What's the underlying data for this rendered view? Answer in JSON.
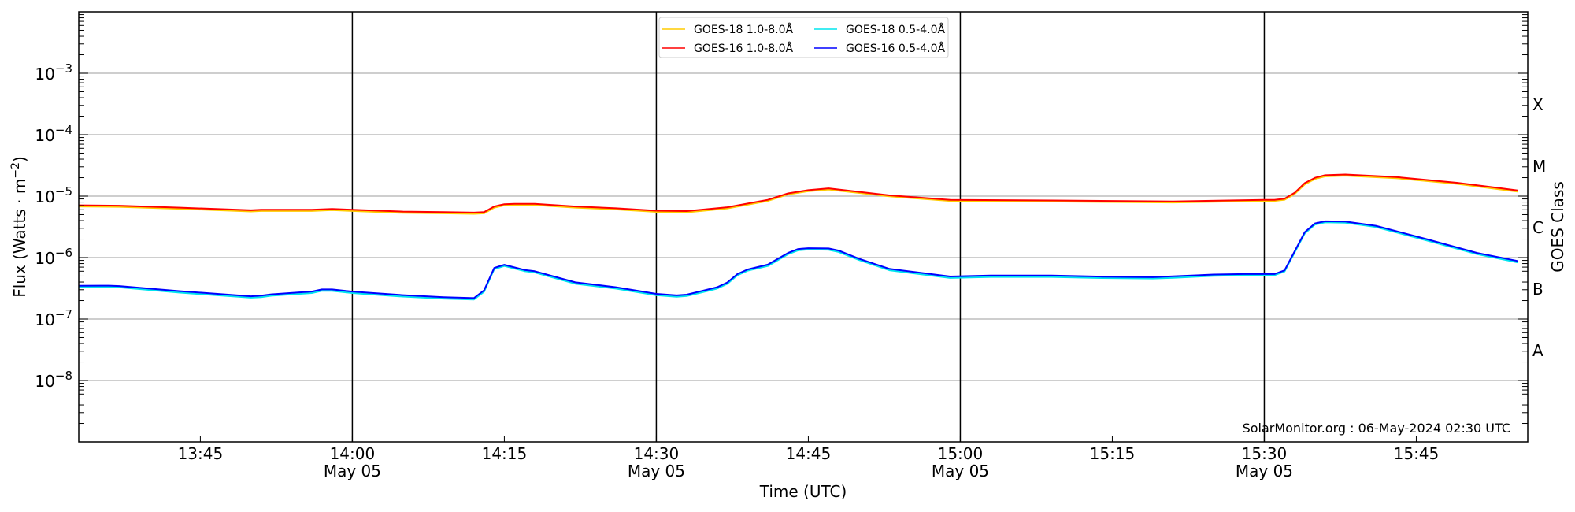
{
  "chart_data": {
    "type": "line",
    "title": "",
    "xlabel": "Time (UTC)",
    "ylabel": "Flux (Watts · m",
    "ylabel_exp": "−2",
    "ylabel_close": ")",
    "right_ylabel": "GOES Class",
    "yscale": "log",
    "ylim": [
      1e-09,
      0.01
    ],
    "xlim": [
      "13:33",
      "15:56"
    ],
    "date": "May 05",
    "xticks": [
      {
        "time": "13:45",
        "label": "13:45",
        "sub": ""
      },
      {
        "time": "14:00",
        "label": "14:00",
        "sub": "May 05"
      },
      {
        "time": "14:15",
        "label": "14:15",
        "sub": ""
      },
      {
        "time": "14:30",
        "label": "14:30",
        "sub": "May 05"
      },
      {
        "time": "14:45",
        "label": "14:45",
        "sub": ""
      },
      {
        "time": "15:00",
        "label": "15:00",
        "sub": "May 05"
      },
      {
        "time": "15:15",
        "label": "15:15",
        "sub": ""
      },
      {
        "time": "15:30",
        "label": "15:30",
        "sub": "May 05"
      },
      {
        "time": "15:45",
        "label": "15:45",
        "sub": ""
      }
    ],
    "vlines": [
      "14:00",
      "14:30",
      "15:00",
      "15:30"
    ],
    "yticks": [
      {
        "exp": -3,
        "base": "10",
        "exp_label": "−3"
      },
      {
        "exp": -4,
        "base": "10",
        "exp_label": "−4"
      },
      {
        "exp": -5,
        "base": "10",
        "exp_label": "−5"
      },
      {
        "exp": -6,
        "base": "10",
        "exp_label": "−6"
      },
      {
        "exp": -7,
        "base": "10",
        "exp_label": "−7"
      },
      {
        "exp": -8,
        "base": "10",
        "exp_label": "−8"
      }
    ],
    "goes_classes": [
      {
        "label": "X",
        "log_center": -3.5
      },
      {
        "label": "M",
        "log_center": -4.5
      },
      {
        "label": "C",
        "log_center": -5.5
      },
      {
        "label": "B",
        "log_center": -6.5
      },
      {
        "label": "A",
        "log_center": -7.5
      }
    ],
    "grid": true,
    "legend_position": "top-center",
    "legend": [
      {
        "name": "GOES-18 1.0-8.0Å",
        "color": "#ffcc00"
      },
      {
        "name": "GOES-18 0.5-4.0Å",
        "color": "#00e5ee"
      },
      {
        "name": "GOES-16 1.0-8.0Å",
        "color": "#ff0000"
      },
      {
        "name": "GOES-16 0.5-4.0Å",
        "color": "#0000ff"
      }
    ],
    "series": [
      {
        "name": "GOES-18 1.0-8.0Å",
        "color": "#ffcc00",
        "x": [
          "13:33",
          "13:37",
          "13:43",
          "13:50",
          "13:51",
          "13:56",
          "13:58",
          "14:00",
          "14:05",
          "14:09",
          "14:12",
          "14:13",
          "14:14",
          "14:15",
          "14:16",
          "14:18",
          "14:22",
          "14:26",
          "14:30",
          "14:33",
          "14:37",
          "14:41",
          "14:43",
          "14:45",
          "14:47",
          "14:53",
          "14:59",
          "15:09",
          "15:21",
          "15:30",
          "15:31",
          "15:32",
          "15:33",
          "15:34",
          "15:35",
          "15:36",
          "15:38",
          "15:43",
          "15:49",
          "15:55"
        ],
        "values": [
          7e-06,
          6.9e-06,
          6.4e-06,
          5.8e-06,
          5.9e-06,
          5.9e-06,
          6.1e-06,
          5.9e-06,
          5.5e-06,
          5.4e-06,
          5.3e-06,
          5.4e-06,
          6.7e-06,
          7.3e-06,
          7.4e-06,
          7.4e-06,
          6.7e-06,
          6.25e-06,
          5.7e-06,
          5.6e-06,
          6.5e-06,
          8.6e-06,
          1.1e-05,
          1.24e-05,
          1.32e-05,
          1.02e-05,
          8.6e-06,
          8.4e-06,
          8.1e-06,
          8.6e-06,
          8.6e-06,
          9e-06,
          1.12e-05,
          1.6e-05,
          1.96e-05,
          2.16e-05,
          2.22e-05,
          2.02e-05,
          1.63e-05,
          1.22e-05
        ]
      },
      {
        "name": "GOES-18 0.5-4.0Å",
        "color": "#00e5ee",
        "x": [
          "13:33",
          "13:36",
          "13:37",
          "13:43",
          "13:50",
          "13:51",
          "13:52",
          "13:56",
          "13:57",
          "13:58",
          "14:00",
          "14:05",
          "14:09",
          "14:12",
          "14:13",
          "14:14",
          "14:15",
          "14:17",
          "14:18",
          "14:22",
          "14:26",
          "14:30",
          "14:32",
          "14:33",
          "14:36",
          "14:37",
          "14:38",
          "14:39",
          "14:41",
          "14:43",
          "14:44",
          "14:45",
          "14:47",
          "14:48",
          "14:50",
          "14:53",
          "14:59",
          "15:03",
          "15:09",
          "15:14",
          "15:19",
          "15:21",
          "15:25",
          "15:28",
          "15:31",
          "15:32",
          "15:34",
          "15:35",
          "15:36",
          "15:38",
          "15:41",
          "15:46",
          "15:51",
          "15:55"
        ],
        "values": [
          3.4e-07,
          3.42e-07,
          3.37e-07,
          2.77e-07,
          2.29e-07,
          2.34e-07,
          2.47e-07,
          2.73e-07,
          2.96e-07,
          2.96e-07,
          2.73e-07,
          2.39e-07,
          2.21e-07,
          2.14e-07,
          2.87e-07,
          6.7e-07,
          7.5e-07,
          6.2e-07,
          5.9e-07,
          3.87e-07,
          3.22e-07,
          2.51e-07,
          2.37e-07,
          2.44e-07,
          3.22e-07,
          3.85e-07,
          5.3e-07,
          6.3e-07,
          7.5e-07,
          1.17e-06,
          1.35e-06,
          1.39e-06,
          1.38e-06,
          1.27e-06,
          9.4e-07,
          6.4e-07,
          4.8e-07,
          4.98e-07,
          4.98e-07,
          4.78e-07,
          4.69e-07,
          4.83e-07,
          5.2e-07,
          5.3e-07,
          5.3e-07,
          6.1e-07,
          2.55e-06,
          3.55e-06,
          3.85e-06,
          3.8e-06,
          3.25e-06,
          1.96e-06,
          1.17e-06,
          8.6e-07
        ]
      },
      {
        "name": "GOES-16 1.0-8.0Å",
        "color": "#ff0000",
        "x": [
          "13:33",
          "13:37",
          "13:43",
          "13:50",
          "13:51",
          "13:56",
          "13:58",
          "14:00",
          "14:05",
          "14:09",
          "14:12",
          "14:13",
          "14:14",
          "14:15",
          "14:16",
          "14:18",
          "14:22",
          "14:26",
          "14:30",
          "14:33",
          "14:37",
          "14:41",
          "14:43",
          "14:45",
          "14:47",
          "14:53",
          "14:59",
          "15:09",
          "15:21",
          "15:30",
          "15:31",
          "15:32",
          "15:33",
          "15:34",
          "15:35",
          "15:36",
          "15:38",
          "15:43",
          "15:49",
          "15:55"
        ],
        "values": [
          7.1e-06,
          7e-06,
          6.5e-06,
          5.9e-06,
          6e-06,
          6e-06,
          6.2e-06,
          6e-06,
          5.6e-06,
          5.5e-06,
          5.4e-06,
          5.5e-06,
          6.8e-06,
          7.4e-06,
          7.5e-06,
          7.5e-06,
          6.8e-06,
          6.35e-06,
          5.8e-06,
          5.7e-06,
          6.6e-06,
          8.7e-06,
          1.11e-05,
          1.25e-05,
          1.34e-05,
          1.03e-05,
          8.7e-06,
          8.5e-06,
          8.2e-06,
          8.7e-06,
          8.7e-06,
          9.1e-06,
          1.14e-05,
          1.63e-05,
          1.99e-05,
          2.19e-05,
          2.25e-05,
          2.05e-05,
          1.65e-05,
          1.24e-05
        ]
      },
      {
        "name": "GOES-16 0.5-4.0Å",
        "color": "#0000ff",
        "x": [
          "13:33",
          "13:36",
          "13:37",
          "13:43",
          "13:50",
          "13:51",
          "13:52",
          "13:56",
          "13:57",
          "13:58",
          "14:00",
          "14:05",
          "14:09",
          "14:12",
          "14:13",
          "14:14",
          "14:15",
          "14:17",
          "14:18",
          "14:22",
          "14:26",
          "14:30",
          "14:32",
          "14:33",
          "14:36",
          "14:37",
          "14:38",
          "14:39",
          "14:41",
          "14:43",
          "14:44",
          "14:45",
          "14:47",
          "14:48",
          "14:50",
          "14:53",
          "14:59",
          "15:03",
          "15:09",
          "15:14",
          "15:19",
          "15:21",
          "15:25",
          "15:28",
          "15:31",
          "15:32",
          "15:34",
          "15:35",
          "15:36",
          "15:38",
          "15:41",
          "15:46",
          "15:51",
          "15:55"
        ],
        "values": [
          3.48e-07,
          3.5e-07,
          3.45e-07,
          2.84e-07,
          2.35e-07,
          2.4e-07,
          2.53e-07,
          2.8e-07,
          3.03e-07,
          3.03e-07,
          2.8e-07,
          2.45e-07,
          2.27e-07,
          2.19e-07,
          2.94e-07,
          6.8e-07,
          7.65e-07,
          6.3e-07,
          6e-07,
          3.96e-07,
          3.3e-07,
          2.57e-07,
          2.43e-07,
          2.5e-07,
          3.3e-07,
          3.94e-07,
          5.4e-07,
          6.4e-07,
          7.7e-07,
          1.19e-06,
          1.38e-06,
          1.42e-06,
          1.41e-06,
          1.3e-06,
          9.6e-07,
          6.55e-07,
          4.92e-07,
          5.1e-07,
          5.1e-07,
          4.9e-07,
          4.8e-07,
          4.95e-07,
          5.3e-07,
          5.4e-07,
          5.4e-07,
          6.2e-07,
          2.6e-06,
          3.6e-06,
          3.9e-06,
          3.85e-06,
          3.3e-06,
          2e-06,
          1.19e-06,
          8.8e-07
        ]
      }
    ],
    "annotation": "SolarMonitor.org : 06-May-2024 02:30 UTC"
  }
}
